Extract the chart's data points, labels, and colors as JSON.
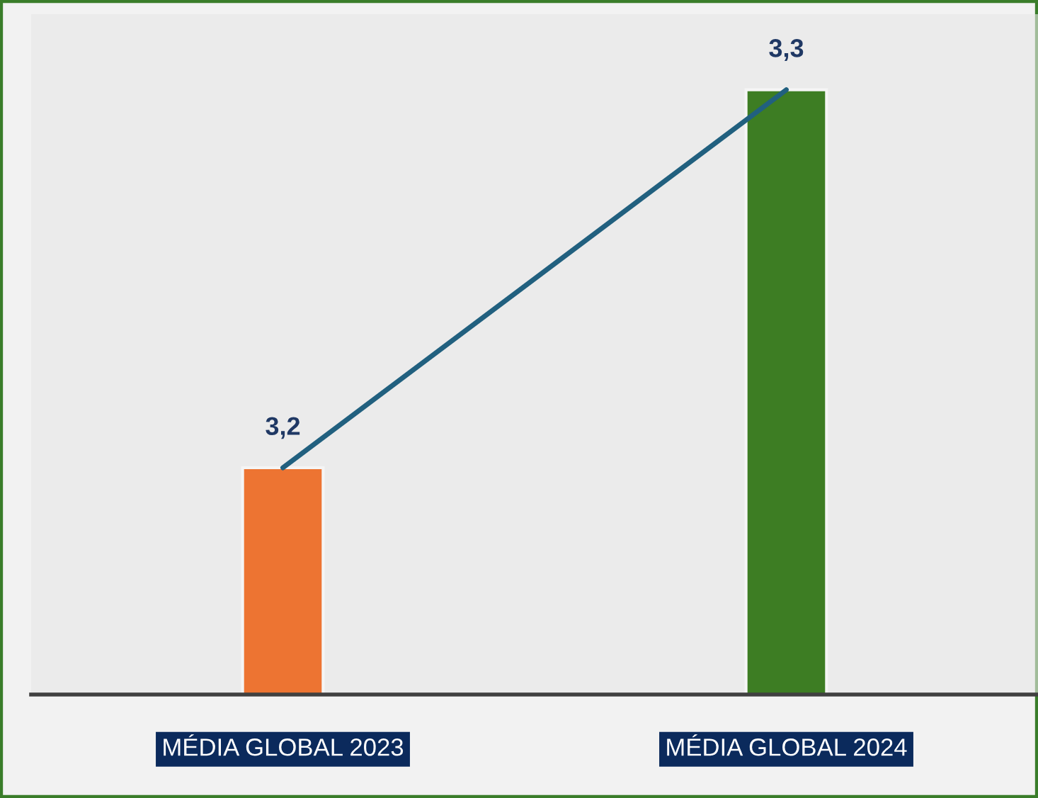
{
  "chart_data": {
    "type": "bar",
    "categories": [
      "MÉDIA GLOBAL 2023",
      "MÉDIA GLOBAL 2024"
    ],
    "series": [
      {
        "colors": [
          "#ed7432",
          "#3d7d23"
        ],
        "values": [
          3.2,
          3.3
        ],
        "value_labels": [
          "3,2",
          "3,3"
        ]
      },
      {
        "type": "line",
        "color": "#21607f",
        "values": [
          3.2,
          3.3
        ]
      }
    ],
    "ylim": [
      3.14,
      3.32
    ],
    "tick_labels": "x"
  }
}
